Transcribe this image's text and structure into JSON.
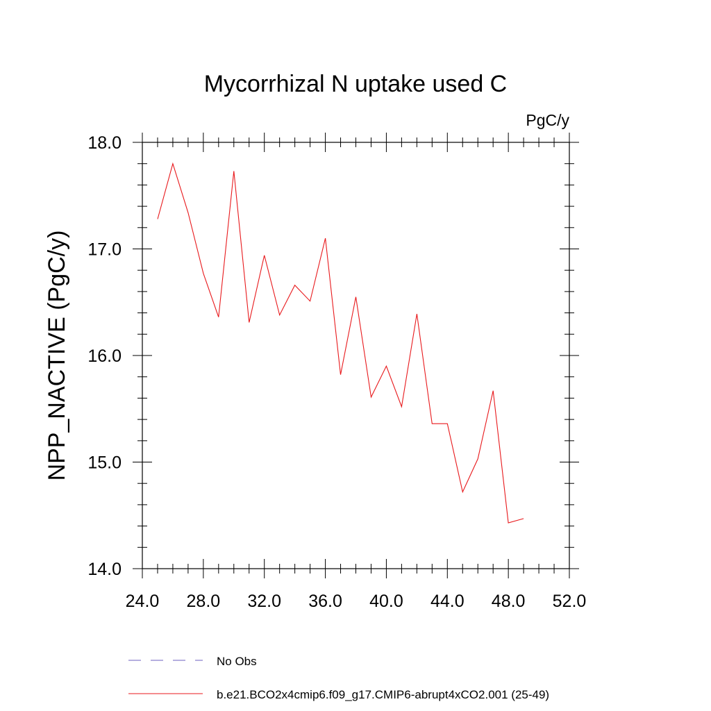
{
  "chart_data": {
    "type": "line",
    "title": "Mycorrhizal N uptake used C",
    "units_label": "PgC/y",
    "xlabel": "",
    "ylabel": "NPP_NACTIVE  (PgC/y)",
    "xlim": [
      24.0,
      52.0
    ],
    "ylim": [
      14.0,
      18.0
    ],
    "x_ticks": [
      "24.0",
      "28.0",
      "32.0",
      "36.0",
      "40.0",
      "44.0",
      "48.0",
      "52.0"
    ],
    "y_ticks": [
      "14.0",
      "15.0",
      "16.0",
      "17.0",
      "18.0"
    ],
    "grid": false,
    "series": [
      {
        "name": "b.e21.BCO2x4cmip6.f09_g17.CMIP6-abrupt4xCO2.001 (25-49)",
        "color": "#e8191c",
        "style": "solid",
        "x": [
          25,
          26,
          27,
          28,
          29,
          30,
          31,
          32,
          33,
          34,
          35,
          36,
          37,
          38,
          39,
          40,
          41,
          42,
          43,
          44,
          45,
          46,
          47,
          48,
          49
        ],
        "values": [
          17.28,
          17.8,
          17.34,
          16.77,
          16.36,
          17.73,
          16.31,
          16.94,
          16.38,
          16.66,
          16.51,
          17.1,
          15.82,
          16.55,
          15.61,
          15.9,
          15.52,
          16.39,
          15.36,
          15.36,
          14.72,
          15.03,
          15.67,
          14.43,
          14.47
        ]
      }
    ],
    "legend": [
      {
        "label": "No Obs",
        "color": "#6b5fbf",
        "style": "dashed"
      },
      {
        "label": "b.e21.BCO2x4cmip6.f09_g17.CMIP6-abrupt4xCO2.001 (25-49)",
        "color": "#e8191c",
        "style": "solid"
      }
    ],
    "legend_position": "bottom"
  }
}
